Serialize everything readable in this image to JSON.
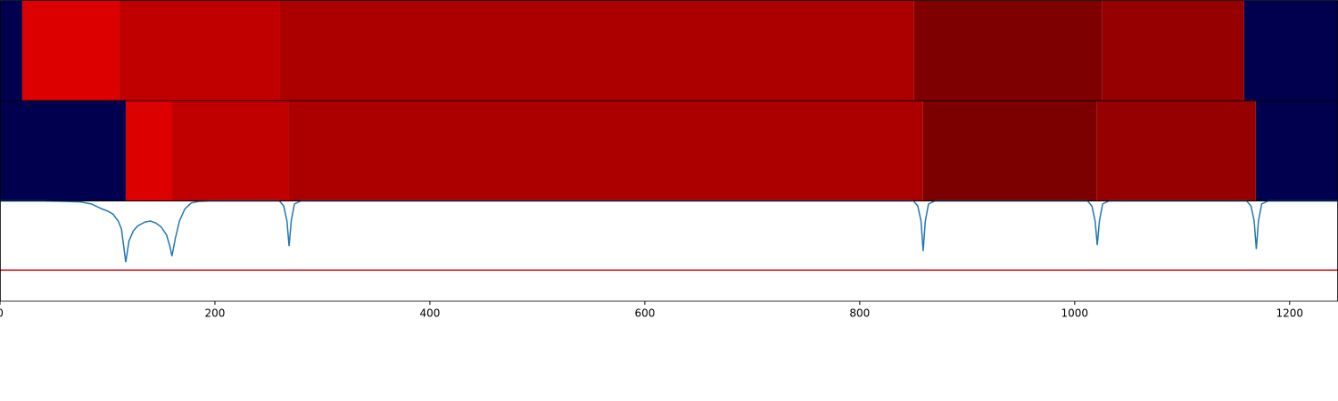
{
  "chart_data": [
    {
      "type": "segments",
      "xlim": [
        0,
        1245
      ],
      "edges": [
        0,
        20.7,
        111.2,
        260.6,
        850.6,
        1025.7,
        1157.7,
        1245
      ],
      "colors": [
        "#00004f",
        "#dd0000",
        "#c00000",
        "#ac0000",
        "#7f0000",
        "#960000",
        "#00004f"
      ]
    },
    {
      "type": "segments",
      "xlim": [
        0,
        1245
      ],
      "edges": [
        0,
        117,
        160.2,
        268.9,
        858.9,
        1020.7,
        1168.5,
        1245
      ],
      "colors": [
        "#00004f",
        "#dd0000",
        "#c00000",
        "#ac0000",
        "#7d0000",
        "#960000",
        "#00004f"
      ]
    },
    {
      "type": "line",
      "xlim": [
        0,
        1245
      ],
      "ylim": [
        0,
        1
      ],
      "xticks": [
        0,
        200,
        400,
        600,
        800,
        1000,
        1200
      ],
      "x": [
        0,
        40,
        60,
        75,
        85,
        95,
        100,
        105,
        110,
        113,
        117,
        120,
        124,
        128,
        135,
        140,
        145,
        150,
        155,
        158,
        160,
        163,
        167,
        172,
        178,
        185,
        195,
        260,
        264,
        267,
        269,
        271,
        274,
        280,
        850,
        854,
        857,
        859,
        861,
        864,
        870,
        1012,
        1016,
        1019,
        1021,
        1023,
        1026,
        1032,
        1160,
        1164,
        1167,
        1169,
        1171,
        1174,
        1180,
        1245
      ],
      "series": [
        {
          "color": "#1f77b4",
          "values": [
            1,
            1,
            0.995,
            0.99,
            0.97,
            0.92,
            0.9,
            0.87,
            0.8,
            0.72,
            0.39,
            0.6,
            0.7,
            0.75,
            0.79,
            0.8,
            0.78,
            0.74,
            0.66,
            0.55,
            0.45,
            0.62,
            0.8,
            0.92,
            0.98,
            0.995,
            1,
            1,
            0.95,
            0.8,
            0.55,
            0.8,
            0.97,
            1,
            1,
            0.95,
            0.8,
            0.5,
            0.8,
            0.97,
            1,
            1,
            0.95,
            0.8,
            0.56,
            0.8,
            0.97,
            1,
            1,
            0.95,
            0.8,
            0.52,
            0.8,
            0.97,
            1,
            1
          ]
        }
      ],
      "hline": 0.31,
      "hline_color": "#e41a1c"
    }
  ]
}
